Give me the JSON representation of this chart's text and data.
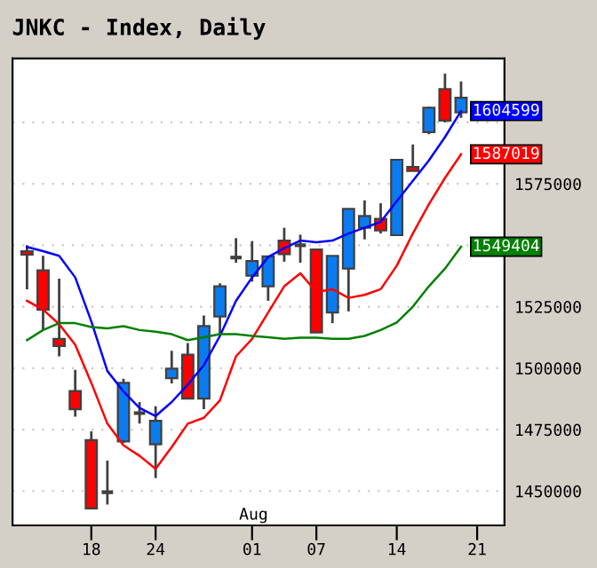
{
  "chart_data": {
    "type": "candlestick",
    "title": "JNKC - Index, Daily",
    "categories": [
      null,
      null,
      null,
      null,
      "18",
      null,
      null,
      null,
      "24",
      null,
      null,
      null,
      null,
      null,
      "01",
      null,
      null,
      null,
      "07",
      null,
      null,
      null,
      null,
      "14",
      null,
      null,
      null,
      null,
      "21",
      null
    ],
    "ohlc": [
      [
        1547600,
        1550000,
        1532100,
        1546200
      ],
      [
        1539800,
        1545700,
        1515500,
        1523800
      ],
      [
        1511900,
        1536400,
        1504800,
        1509000
      ],
      [
        1490700,
        1499300,
        1480200,
        1483300
      ],
      [
        1470700,
        1474300,
        1442900,
        1442900
      ],
      [
        1449500,
        1462400,
        1444500,
        1449500
      ],
      [
        1470200,
        1495700,
        1469500,
        1494000
      ],
      [
        1481700,
        1486200,
        1477400,
        1481700
      ],
      [
        1469000,
        1484500,
        1455200,
        1478600
      ],
      [
        1495900,
        1507100,
        1493800,
        1499800
      ],
      [
        1505500,
        1510200,
        1487600,
        1487600
      ],
      [
        1487600,
        1521400,
        1483300,
        1517100
      ],
      [
        1521000,
        1534500,
        1513100,
        1533300
      ],
      [
        1545000,
        1552900,
        1542900,
        1545000
      ],
      [
        1537600,
        1551700,
        1535200,
        1543600
      ],
      [
        1533300,
        1545500,
        1527400,
        1545500
      ],
      [
        1551900,
        1557100,
        1543300,
        1546400
      ],
      [
        1550000,
        1554300,
        1542900,
        1550000
      ],
      [
        1548300,
        1548300,
        1514500,
        1514500
      ],
      [
        1522600,
        1545700,
        1518300,
        1545700
      ],
      [
        1540500,
        1564800,
        1523100,
        1564800
      ],
      [
        1557100,
        1568300,
        1552400,
        1561900
      ],
      [
        1560700,
        1567100,
        1554800,
        1556000
      ],
      [
        1554100,
        1584800,
        1554100,
        1584800
      ],
      [
        1581900,
        1591000,
        1580200,
        1580200
      ],
      [
        1596000,
        1606400,
        1595200,
        1606000
      ],
      [
        1613600,
        1619800,
        1600000,
        1600700
      ],
      [
        1604100,
        1616700,
        1601900,
        1610000
      ],
      null,
      null
    ],
    "colors": [
      "#ff0000",
      "#ff0000",
      "#ff0000",
      "#ff0000",
      "#ff0000",
      "#404040",
      "#0a7cf0",
      "#404040",
      "#0a7cf0",
      "#0a7cf0",
      "#ff0000",
      "#0a7cf0",
      "#0a7cf0",
      "#404040",
      "#0a7cf0",
      "#0a7cf0",
      "#ff0000",
      "#404040",
      "#ff0000",
      "#0a7cf0",
      "#0a7cf0",
      "#0a7cf0",
      "#ff0000",
      "#0a7cf0",
      "#ff0000",
      "#0a7cf0",
      "#ff0000",
      "#0a7cf0",
      null,
      null
    ],
    "series": [
      {
        "type": "line",
        "color": "#0000ff",
        "values": [
          1549300,
          1547600,
          1545700,
          1536900,
          1519000,
          1498800,
          1490500,
          1483800,
          1480500,
          1486200,
          1493300,
          1501200,
          1513100,
          1527400,
          1536900,
          1545200,
          1548800,
          1551900,
          1551200,
          1551900,
          1554800,
          1557100,
          1559500,
          1567900,
          1576200,
          1584500,
          1594000,
          1604599,
          null,
          null
        ],
        "value_labels": [
          null,
          null,
          null,
          null,
          null,
          null,
          null,
          null,
          null,
          null,
          null,
          null,
          null,
          null,
          null,
          null,
          null,
          null,
          null,
          null,
          null,
          null,
          null,
          null,
          null,
          null,
          null,
          "1604599",
          null,
          null
        ]
      },
      {
        "type": "line",
        "color": "#ff0000",
        "values": [
          1527400,
          1523800,
          1517900,
          1509500,
          1494000,
          1477400,
          1468600,
          1464300,
          1459000,
          1467900,
          1477400,
          1479800,
          1486900,
          1504800,
          1511900,
          1522600,
          1533300,
          1538600,
          1531000,
          1532100,
          1528600,
          1529800,
          1532100,
          1541700,
          1554800,
          1566700,
          1577400,
          1587019,
          null,
          null
        ],
        "value_labels": [
          null,
          null,
          null,
          null,
          null,
          null,
          null,
          null,
          null,
          null,
          null,
          null,
          null,
          null,
          null,
          null,
          null,
          null,
          null,
          null,
          null,
          null,
          null,
          null,
          null,
          null,
          null,
          "1587019",
          null,
          null
        ]
      },
      {
        "type": "line",
        "color": "#008000",
        "values": [
          1511400,
          1515500,
          1518300,
          1518300,
          1516700,
          1516200,
          1517100,
          1515500,
          1514800,
          1513800,
          1511400,
          1512600,
          1513800,
          1513800,
          1513100,
          1512600,
          1511900,
          1512400,
          1512400,
          1511900,
          1511900,
          1513100,
          1515500,
          1518600,
          1525000,
          1533300,
          1540500,
          1549404,
          null,
          null
        ],
        "value_labels": [
          null,
          null,
          null,
          null,
          null,
          null,
          null,
          null,
          null,
          null,
          null,
          null,
          null,
          null,
          null,
          null,
          null,
          null,
          null,
          null,
          null,
          null,
          null,
          null,
          null,
          null,
          null,
          "1549404",
          null,
          null
        ]
      }
    ],
    "ylim": [
      1436000,
      1626000
    ],
    "yticks": [
      1450000,
      1475000,
      1500000,
      1525000,
      {
        "value": 1550000,
        "label": null
      },
      1575000,
      {
        "value": 1600000,
        "label": null
      }
    ],
    "grid": "y",
    "annotations": [
      "Aug"
    ]
  }
}
